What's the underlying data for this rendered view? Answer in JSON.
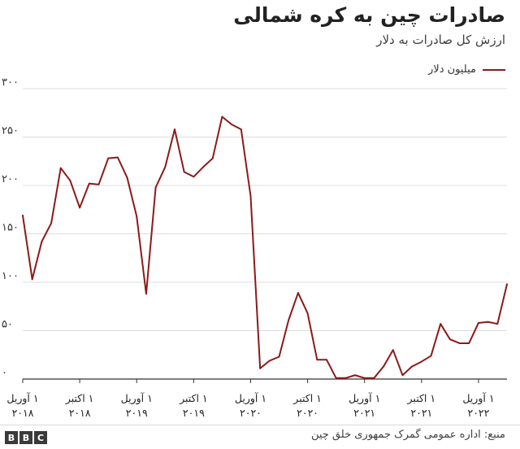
{
  "chart_data": {
    "type": "line",
    "title": "صادرات چین به کره شمالی",
    "subtitle": "ارزش کل صادرات به دلار",
    "series": [
      {
        "name": "میلیون دلار",
        "color": "#8b1a1a",
        "values": [
          169,
          103,
          142,
          161,
          218,
          205,
          177,
          202,
          201,
          228,
          229,
          208,
          168,
          88,
          198,
          219,
          258,
          214,
          209,
          219,
          228,
          271,
          263,
          258,
          189,
          11,
          19,
          23,
          61,
          89,
          68,
          20,
          20,
          1,
          1,
          4,
          1,
          1,
          13,
          30,
          4,
          13,
          18,
          24,
          57,
          41,
          37,
          37,
          58,
          59,
          57,
          98
        ]
      }
    ],
    "ylim": [
      0,
      300
    ],
    "y_ticks": [
      0,
      50,
      100,
      150,
      200,
      250,
      300
    ],
    "y_tick_labels": [
      "۰",
      "۵۰",
      "۱۰۰",
      "۱۵۰",
      "۲۰۰",
      "۲۵۰",
      "۳۰۰"
    ],
    "x_ticks": [
      {
        "index": 0,
        "line1": "۱ آوریل",
        "line2": "۲۰۱۸"
      },
      {
        "index": 6,
        "line1": "۱ اکتبر",
        "line2": "۲۰۱۸"
      },
      {
        "index": 12,
        "line1": "۱ آوریل",
        "line2": "۲۰۱۹"
      },
      {
        "index": 18,
        "line1": "۱ اکتبر",
        "line2": "۲۰۱۹"
      },
      {
        "index": 24,
        "line1": "۱ آوریل",
        "line2": "۲۰۲۰"
      },
      {
        "index": 30,
        "line1": "۱ اکتبر",
        "line2": "۲۰۲۰"
      },
      {
        "index": 36,
        "line1": "۱ آوریل",
        "line2": "۲۰۲۱"
      },
      {
        "index": 42,
        "line1": "۱ اکتبر",
        "line2": "۲۰۲۱"
      },
      {
        "index": 48,
        "line1": "۱ آوریل",
        "line2": "۲۰۲۲"
      }
    ],
    "grid": true,
    "legend_position": "top-right"
  },
  "source": "منبع: اداره عمومی گمرک جمهوری خلق چین",
  "logo": [
    "B",
    "B",
    "C"
  ]
}
